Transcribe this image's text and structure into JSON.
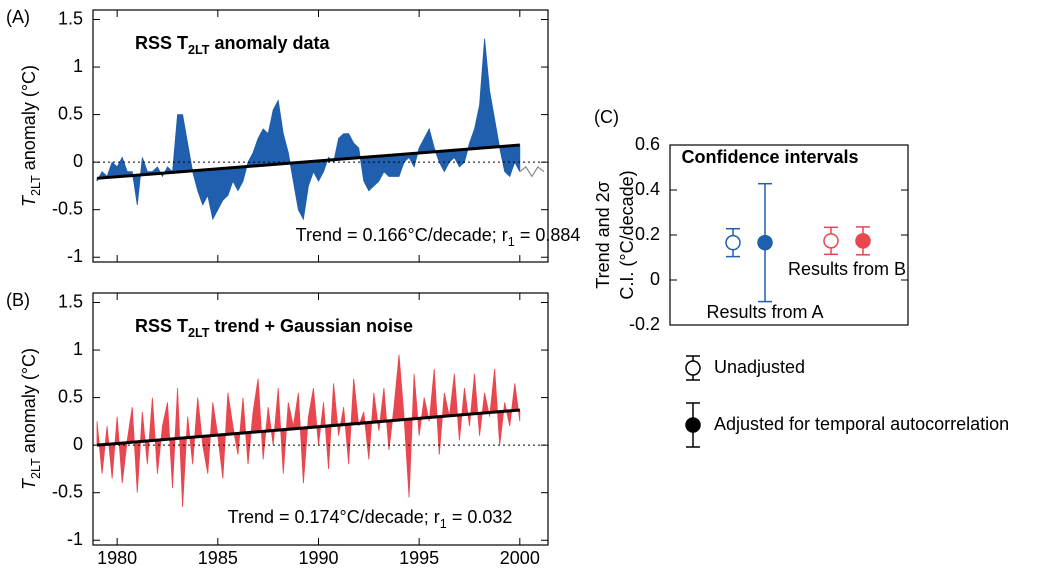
{
  "chart_data": [
    {
      "type": "area",
      "panel_label": "(A)",
      "title": [
        "RSS T",
        "2LT",
        " anomaly data"
      ],
      "y_label": [
        "T",
        "2LT",
        " anomaly (°C)"
      ],
      "annotation": [
        "Trend = 0.166°C/decade; r",
        "1",
        " = 0.884"
      ],
      "xlim": [
        1978.8,
        2001.4
      ],
      "xticks": [
        1980,
        1985,
        1990,
        1995,
        2000
      ],
      "show_xtick_labels": false,
      "ylim": [
        -1.05,
        1.6
      ],
      "yticks": [
        -1,
        -0.5,
        0,
        0.5,
        1,
        1.5
      ],
      "reference_line": 0,
      "fill_to_series": 1,
      "series": [
        {
          "color": "#1f5fad",
          "x": [
            1979,
            1979.25,
            1979.5,
            1979.75,
            1980,
            1980.25,
            1980.5,
            1980.75,
            1981,
            1981.25,
            1981.5,
            1981.75,
            1982,
            1982.25,
            1982.5,
            1982.75,
            1983,
            1983.25,
            1983.5,
            1983.75,
            1984,
            1984.25,
            1984.5,
            1984.75,
            1985,
            1985.25,
            1985.5,
            1985.75,
            1986,
            1986.25,
            1986.5,
            1986.75,
            1987,
            1987.25,
            1987.5,
            1987.75,
            1988,
            1988.25,
            1988.5,
            1988.75,
            1989,
            1989.25,
            1989.5,
            1989.75,
            1990,
            1990.25,
            1990.5,
            1990.75,
            1991,
            1991.25,
            1991.5,
            1991.75,
            1992,
            1992.25,
            1992.5,
            1992.75,
            1993,
            1993.25,
            1993.5,
            1993.75,
            1994,
            1994.25,
            1994.5,
            1994.75,
            1995,
            1995.25,
            1995.5,
            1995.75,
            1996,
            1996.25,
            1996.5,
            1996.75,
            1997,
            1997.25,
            1997.5,
            1997.75,
            1998,
            1998.25,
            1998.5,
            1998.75,
            1999,
            1999.25,
            1999.5,
            1999.75,
            2000
          ],
          "values": [
            -0.2,
            -0.1,
            -0.15,
            0.0,
            -0.05,
            0.05,
            -0.1,
            -0.1,
            -0.45,
            0.05,
            -0.1,
            -0.1,
            -0.05,
            -0.15,
            -0.05,
            -0.1,
            0.5,
            0.5,
            0.2,
            -0.1,
            -0.3,
            -0.45,
            -0.35,
            -0.6,
            -0.5,
            -0.4,
            -0.35,
            -0.2,
            -0.3,
            -0.2,
            0.0,
            0.1,
            0.25,
            0.35,
            0.3,
            0.55,
            0.65,
            0.3,
            0.1,
            -0.2,
            -0.5,
            -0.6,
            -0.25,
            -0.1,
            -0.2,
            -0.1,
            0.05,
            0.0,
            0.25,
            0.3,
            0.3,
            0.2,
            0.15,
            -0.2,
            -0.3,
            -0.25,
            -0.2,
            -0.1,
            -0.15,
            -0.15,
            -0.15,
            0.0,
            0.05,
            -0.05,
            0.15,
            0.25,
            0.35,
            0.15,
            0.0,
            -0.1,
            0.0,
            0.05,
            -0.05,
            0.0,
            0.2,
            0.35,
            0.6,
            1.3,
            0.75,
            0.45,
            0.15,
            -0.1,
            -0.15,
            0.0,
            -0.1
          ]
        },
        {
          "color": "#000000",
          "x": [
            1979,
            2000
          ],
          "values": [
            -0.17,
            0.18
          ]
        },
        {
          "color": "#888888",
          "x": [
            2000,
            2000.3,
            2000.6,
            2000.9,
            2001.2
          ],
          "values": [
            -0.1,
            -0.05,
            -0.15,
            -0.05,
            -0.1
          ]
        }
      ]
    },
    {
      "type": "area",
      "panel_label": "(B)",
      "title": [
        "RSS T",
        "2LT",
        " trend + Gaussian noise"
      ],
      "y_label": [
        "T",
        "2LT",
        " anomaly (°C)"
      ],
      "annotation": [
        "Trend = 0.174°C/decade; r",
        "1",
        " = 0.032"
      ],
      "xlim": [
        1978.8,
        2001.4
      ],
      "xticks": [
        1980,
        1985,
        1990,
        1995,
        2000
      ],
      "show_xtick_labels": true,
      "ylim": [
        -1.05,
        1.6
      ],
      "yticks": [
        -1,
        -0.5,
        0,
        0.5,
        1,
        1.5
      ],
      "reference_line": 0,
      "fill_to_series": 1,
      "series": [
        {
          "color": "#e8474f",
          "x": [
            1979,
            1979.25,
            1979.5,
            1979.75,
            1980,
            1980.25,
            1980.5,
            1980.75,
            1981,
            1981.25,
            1981.5,
            1981.75,
            1982,
            1982.25,
            1982.5,
            1982.75,
            1983,
            1983.25,
            1983.5,
            1983.75,
            1984,
            1984.25,
            1984.5,
            1984.75,
            1985,
            1985.25,
            1985.5,
            1985.75,
            1986,
            1986.25,
            1986.5,
            1986.75,
            1987,
            1987.25,
            1987.5,
            1987.75,
            1988,
            1988.25,
            1988.5,
            1988.75,
            1989,
            1989.25,
            1989.5,
            1989.75,
            1990,
            1990.25,
            1990.5,
            1990.75,
            1991,
            1991.25,
            1991.5,
            1991.75,
            1992,
            1992.25,
            1992.5,
            1992.75,
            1993,
            1993.25,
            1993.5,
            1993.75,
            1994,
            1994.25,
            1994.5,
            1994.75,
            1995,
            1995.25,
            1995.5,
            1995.75,
            1996,
            1996.25,
            1996.5,
            1996.75,
            1997,
            1997.25,
            1997.5,
            1997.75,
            1998,
            1998.25,
            1998.5,
            1998.75,
            1999,
            1999.25,
            1999.5,
            1999.75,
            2000
          ],
          "values": [
            0.25,
            -0.3,
            0.2,
            -0.35,
            0.3,
            -0.4,
            0.05,
            0.4,
            -0.5,
            0.35,
            -0.2,
            0.5,
            -0.3,
            0.2,
            0.45,
            -0.45,
            0.6,
            -0.65,
            0.3,
            -0.2,
            0.5,
            0.0,
            -0.3,
            0.45,
            0.1,
            -0.35,
            0.55,
            0.2,
            -0.1,
            0.5,
            -0.2,
            0.35,
            0.7,
            -0.15,
            0.4,
            0.0,
            0.6,
            -0.3,
            0.45,
            0.2,
            0.55,
            -0.4,
            0.3,
            0.6,
            0.0,
            0.45,
            -0.25,
            0.65,
            0.1,
            0.4,
            -0.2,
            0.7,
            0.2,
            0.35,
            -0.15,
            0.55,
            0.15,
            0.6,
            -0.05,
            0.4,
            0.95,
            0.3,
            -0.55,
            0.75,
            0.1,
            0.5,
            0.25,
            0.8,
            -0.1,
            0.55,
            0.3,
            0.75,
            0.05,
            0.6,
            0.2,
            0.75,
            0.1,
            0.55,
            0.3,
            0.8,
            0.0,
            0.45,
            0.2,
            0.65,
            0.25
          ]
        },
        {
          "color": "#000000",
          "x": [
            1979,
            2000
          ],
          "values": [
            0.0,
            0.37
          ]
        }
      ]
    },
    {
      "type": "errorbar",
      "panel_label": "(C)",
      "title": "Confidence intervals",
      "y_label": [
        "Trend and 2σ",
        "C.I. (°C/decade)"
      ],
      "ylim": [
        -0.2,
        0.6
      ],
      "yticks": [
        -0.2,
        0,
        0.2,
        0.4,
        0.6
      ],
      "series": [
        {
          "name": "Results from A",
          "color": "#1f5fad",
          "values": [
            0.166,
            0.166
          ],
          "errors": [
            0.062,
            0.262
          ]
        },
        {
          "name": "Results from B",
          "color": "#e8474f",
          "values": [
            0.174,
            0.174
          ],
          "errors": [
            0.06,
            0.062
          ]
        }
      ],
      "legend": [
        {
          "label": "Unadjusted",
          "filled": false
        },
        {
          "label": "Adjusted for temporal autocorrelation",
          "filled": true
        }
      ]
    }
  ]
}
